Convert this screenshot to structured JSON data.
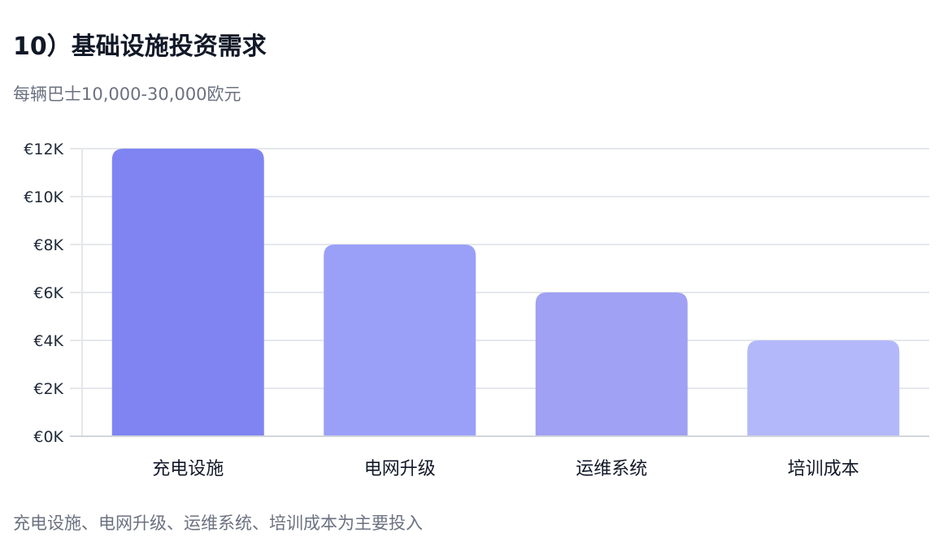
{
  "title": "10）基础设施投资需求",
  "subtitle": "每辆巴士10,000-30,000欧元",
  "footnote": "充电设施、电网升级、运维系统、培训成本为主要投入",
  "chart_data": {
    "type": "bar",
    "categories": [
      "充电设施",
      "电网升级",
      "运维系统",
      "培训成本"
    ],
    "values": [
      12000,
      8000,
      6000,
      4000
    ],
    "colors": [
      "#8084f2",
      "#9aa0f8",
      "#a0a0f4",
      "#b2b8fa"
    ],
    "ylim": [
      0,
      12000
    ],
    "yticks": [
      0,
      2000,
      4000,
      6000,
      8000,
      10000,
      12000
    ],
    "ytick_labels": [
      "€0K",
      "€2K",
      "€4K",
      "€6K",
      "€8K",
      "€10K",
      "€12K"
    ],
    "grid": true,
    "xlabel": "",
    "ylabel": ""
  }
}
